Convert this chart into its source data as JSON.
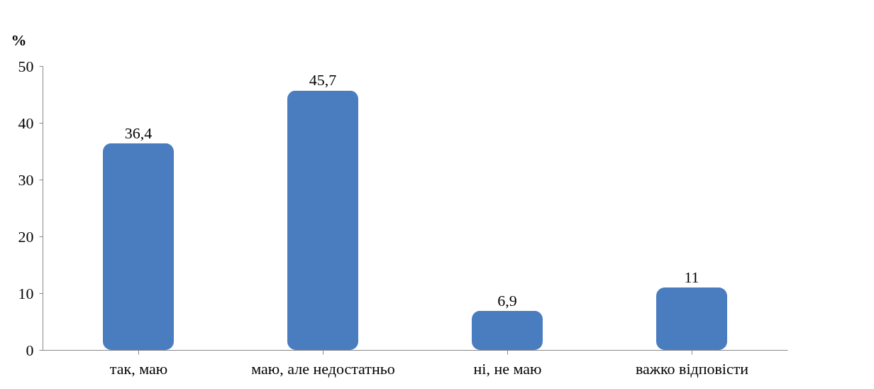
{
  "chart_data": {
    "type": "bar",
    "ylabel": "%",
    "categories": [
      "так, маю",
      "маю, але недостатньо",
      "ні, не маю",
      "важко відповісти"
    ],
    "values": [
      36.4,
      45.7,
      6.9,
      11
    ],
    "value_labels": [
      "36,4",
      "45,7",
      "6,9",
      "11"
    ],
    "color": "#4a7cc0",
    "ylim": [
      0,
      50
    ],
    "yticks": [
      0,
      10,
      20,
      30,
      40,
      50
    ],
    "grid": false
  }
}
